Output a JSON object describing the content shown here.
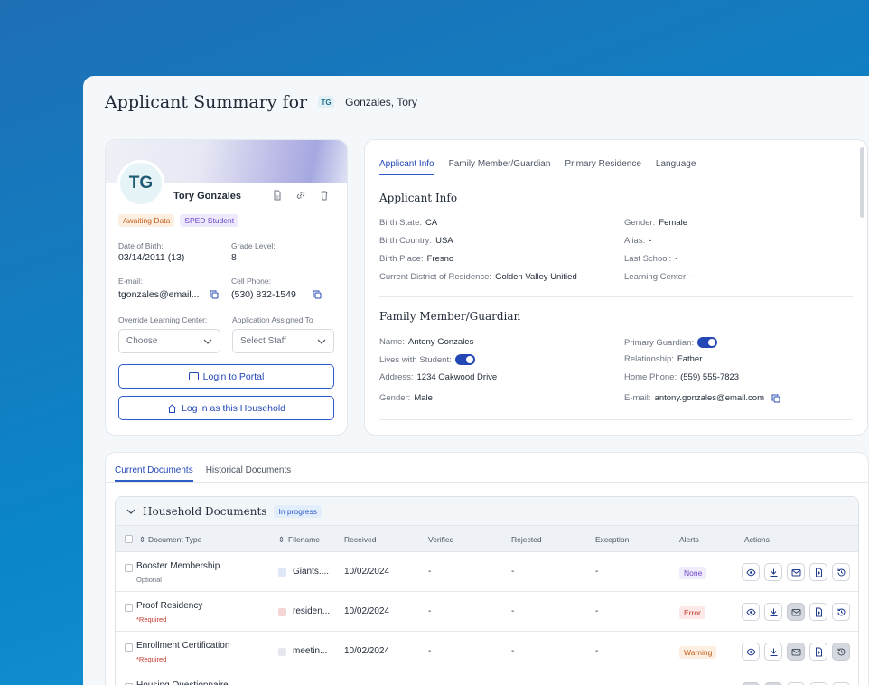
{
  "header": {
    "title": "Applicant Summary for",
    "initials": "TG",
    "name": "Gonzales, Tory"
  },
  "profile": {
    "initials": "TG",
    "name": "Tory Gonzales",
    "icons": [
      "file-icon",
      "link-icon",
      "trash-icon"
    ],
    "tags": [
      "Awaiting Data",
      "SPED Student"
    ],
    "dob_label": "Date of Birth:",
    "dob": "03/14/2011 (13)",
    "grade_label": "Grade Level:",
    "grade": "8",
    "email_label": "E-mail:",
    "email": "tgonzales@email...",
    "phone_label": "Cell Phone:",
    "phone": "(530) 832-1549",
    "override_label": "Override Learning Center:",
    "override_value": "Choose",
    "assigned_label": "Application Assigned To",
    "assigned_value": "Select Staff",
    "login_portal": "Login to Portal",
    "login_household": "Log in as this Household"
  },
  "info": {
    "tabs": [
      "Applicant Info",
      "Family Member/Guardian",
      "Primary Residence",
      "Language"
    ],
    "applicant_title": "Applicant Info",
    "applicant_left": [
      {
        "k": "Birth State:",
        "v": "CA"
      },
      {
        "k": "Birth Country:",
        "v": "USA"
      },
      {
        "k": "Birth Place:",
        "v": "Fresno"
      },
      {
        "k": "Current District of Residence:",
        "v": "Golden Valley Unified"
      }
    ],
    "applicant_right": [
      {
        "k": "Gender:",
        "v": "Female"
      },
      {
        "k": "Alias:",
        "v": "-"
      },
      {
        "k": "Last School:",
        "v": "-"
      },
      {
        "k": "Learning Center:",
        "v": "-"
      }
    ],
    "family_title": "Family Member/Guardian",
    "family_left": [
      {
        "k": "Name:",
        "v": "Antony Gonzales"
      },
      {
        "k": "Lives with Student:",
        "v": ""
      },
      {
        "k": "Address:",
        "v": "1234 Oakwood Drive"
      },
      {
        "k": "Gender:",
        "v": "Male"
      }
    ],
    "family_right": [
      {
        "k": "Primary Guardian:",
        "v": ""
      },
      {
        "k": "Relationship:",
        "v": "Father"
      },
      {
        "k": "Home Phone:",
        "v": "(559) 555-7823"
      },
      {
        "k": "E-mail:",
        "v": "antony.gonzales@email.com"
      }
    ]
  },
  "docs": {
    "tabs": [
      "Current Documents",
      "Historical Documents"
    ],
    "group_title": "Household Documents",
    "group_status": "In progress",
    "columns": [
      "Document Type",
      "Filename",
      "Received",
      "Verified",
      "Rejected",
      "Exception",
      "Alerts",
      "Actions"
    ],
    "rows": [
      {
        "type": "Booster Membership",
        "note": "Optional",
        "filename": "Giants....",
        "received": "10/02/2024",
        "verified": "-",
        "rejected": "-",
        "exception": "-",
        "alert": "None"
      },
      {
        "type": "Proof Residency",
        "note": "*Required",
        "filename": "residen...",
        "received": "10/02/2024",
        "verified": "-",
        "rejected": "-",
        "exception": "-",
        "alert": "Error"
      },
      {
        "type": "Enrollment Certification",
        "note": "*Required",
        "filename": "meetin...",
        "received": "10/02/2024",
        "verified": "-",
        "rejected": "-",
        "exception": "-",
        "alert": "Warning"
      },
      {
        "type": "Housing Questionnaire",
        "note": "",
        "filename": "",
        "received": "",
        "verified": "",
        "rejected": "",
        "exception": "",
        "alert": ""
      }
    ]
  },
  "colors": {
    "primary": "#2348b5",
    "background": "#0a86c8",
    "error": "#c0392b",
    "warning": "#c55c1a"
  }
}
